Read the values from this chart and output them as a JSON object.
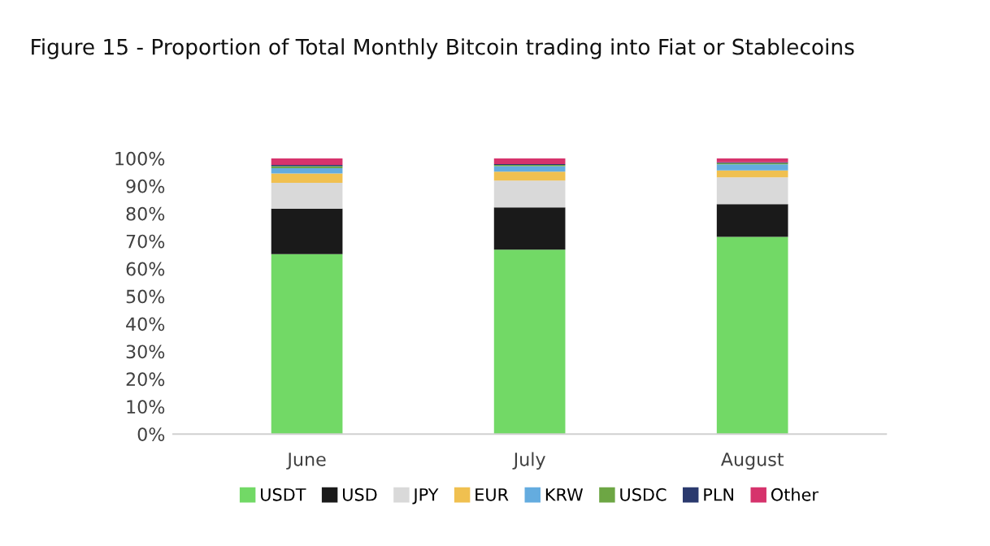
{
  "chart_data": {
    "type": "bar",
    "stacked": true,
    "title": "Figure 15 - Proportion of Total Monthly Bitcoin trading into Fiat or Stablecoins",
    "categories": [
      "June",
      "July",
      "August"
    ],
    "series": [
      {
        "name": "USDT",
        "color": "#72d966",
        "values": [
          65.3,
          66.9,
          71.5
        ]
      },
      {
        "name": "USD",
        "color": "#1a1a1a",
        "values": [
          16.5,
          15.3,
          11.9
        ]
      },
      {
        "name": "JPY",
        "color": "#d9d9d9",
        "values": [
          9.3,
          9.7,
          9.7
        ]
      },
      {
        "name": "EUR",
        "color": "#f0c050",
        "values": [
          3.4,
          3.3,
          2.5
        ]
      },
      {
        "name": "KRW",
        "color": "#64acdf",
        "values": [
          1.9,
          2.0,
          2.2
        ]
      },
      {
        "name": "USDC",
        "color": "#6da644",
        "values": [
          0.8,
          0.4,
          0.5
        ]
      },
      {
        "name": "PLN",
        "color": "#2b3a6e",
        "values": [
          0.4,
          0.3,
          0.3
        ]
      },
      {
        "name": "Other",
        "color": "#d6336c",
        "values": [
          2.4,
          2.1,
          1.4
        ]
      }
    ],
    "ylim": [
      0,
      100
    ],
    "yticks": [
      {
        "value": 0,
        "label": "0%"
      },
      {
        "value": 10,
        "label": "10%"
      },
      {
        "value": 20,
        "label": "20%"
      },
      {
        "value": 30,
        "label": "30%"
      },
      {
        "value": 40,
        "label": "40%"
      },
      {
        "value": 50,
        "label": "50%"
      },
      {
        "value": 60,
        "label": "60%"
      },
      {
        "value": 70,
        "label": "70%"
      },
      {
        "value": 80,
        "label": "80%"
      },
      {
        "value": 90,
        "label": "90%"
      },
      {
        "value": 100,
        "label": "100%"
      }
    ],
    "grid": false,
    "legend": "bottom"
  }
}
